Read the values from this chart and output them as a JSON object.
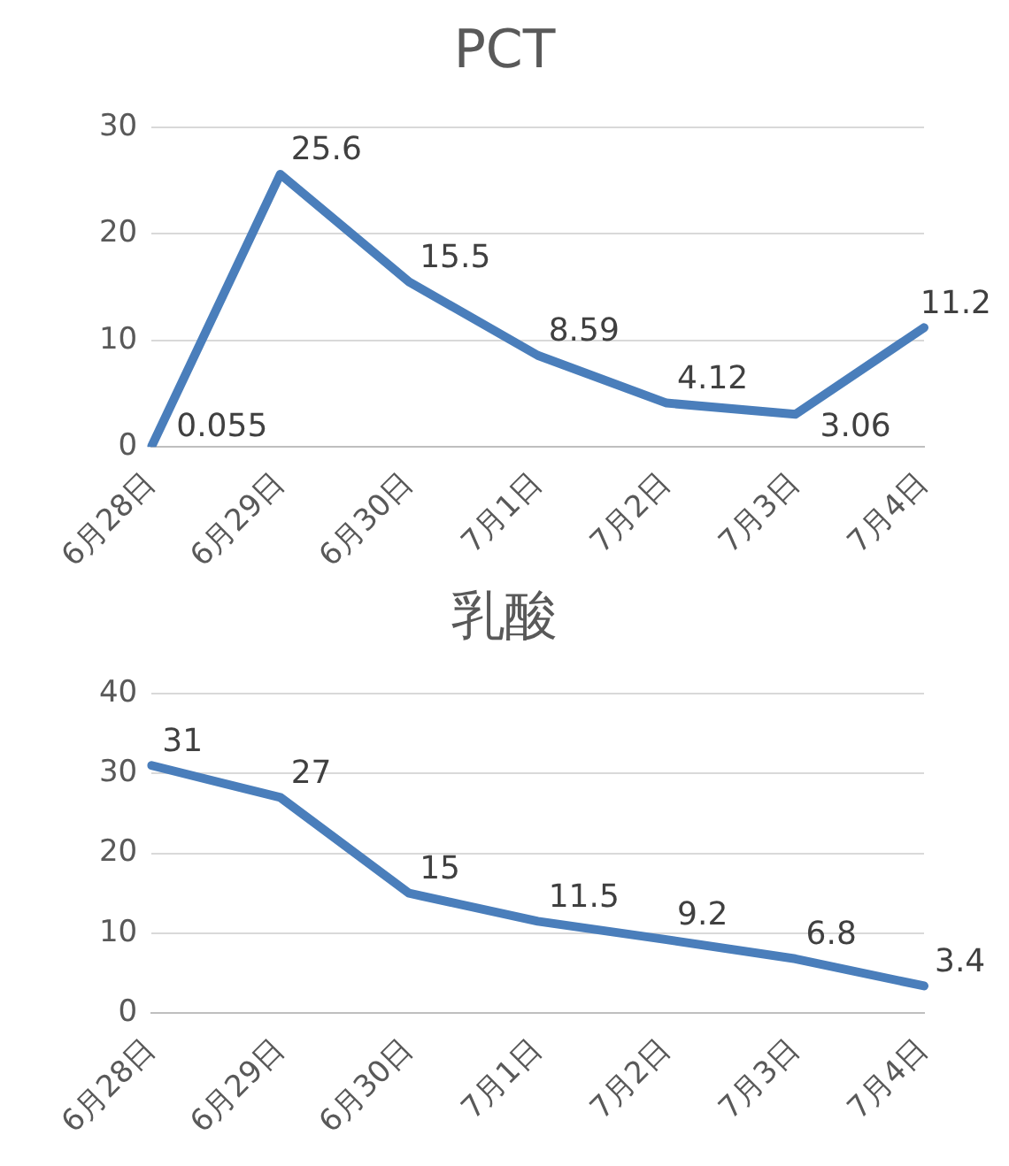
{
  "chart_data": [
    {
      "type": "line",
      "title": "PCT",
      "categories": [
        "6月28日",
        "6月29日",
        "6月30日",
        "7月1日",
        "7月2日",
        "7月3日",
        "7月4日"
      ],
      "series": [
        {
          "color": "#4a7ebb",
          "values": [
            0.055,
            25.6,
            15.5,
            8.59,
            4.12,
            3.06,
            11.2
          ]
        }
      ],
      "ylim": [
        0,
        30
      ],
      "yticks": [
        0,
        10,
        20,
        30
      ],
      "grid": "y",
      "data_labels": true,
      "marker": "none",
      "line_style": "solid"
    },
    {
      "type": "line",
      "title": "乳酸",
      "categories": [
        "6月28日",
        "6月29日",
        "6月30日",
        "7月1日",
        "7月2日",
        "7月3日",
        "7月4日"
      ],
      "series": [
        {
          "color": "#4a7ebb",
          "values": [
            31,
            27,
            15,
            11.5,
            9.2,
            6.8,
            3.4
          ]
        }
      ],
      "ylim": [
        0,
        40
      ],
      "yticks": [
        0,
        10,
        20,
        30,
        40
      ],
      "grid": "y",
      "data_labels": true,
      "marker": "none",
      "line_style": "solid"
    }
  ]
}
